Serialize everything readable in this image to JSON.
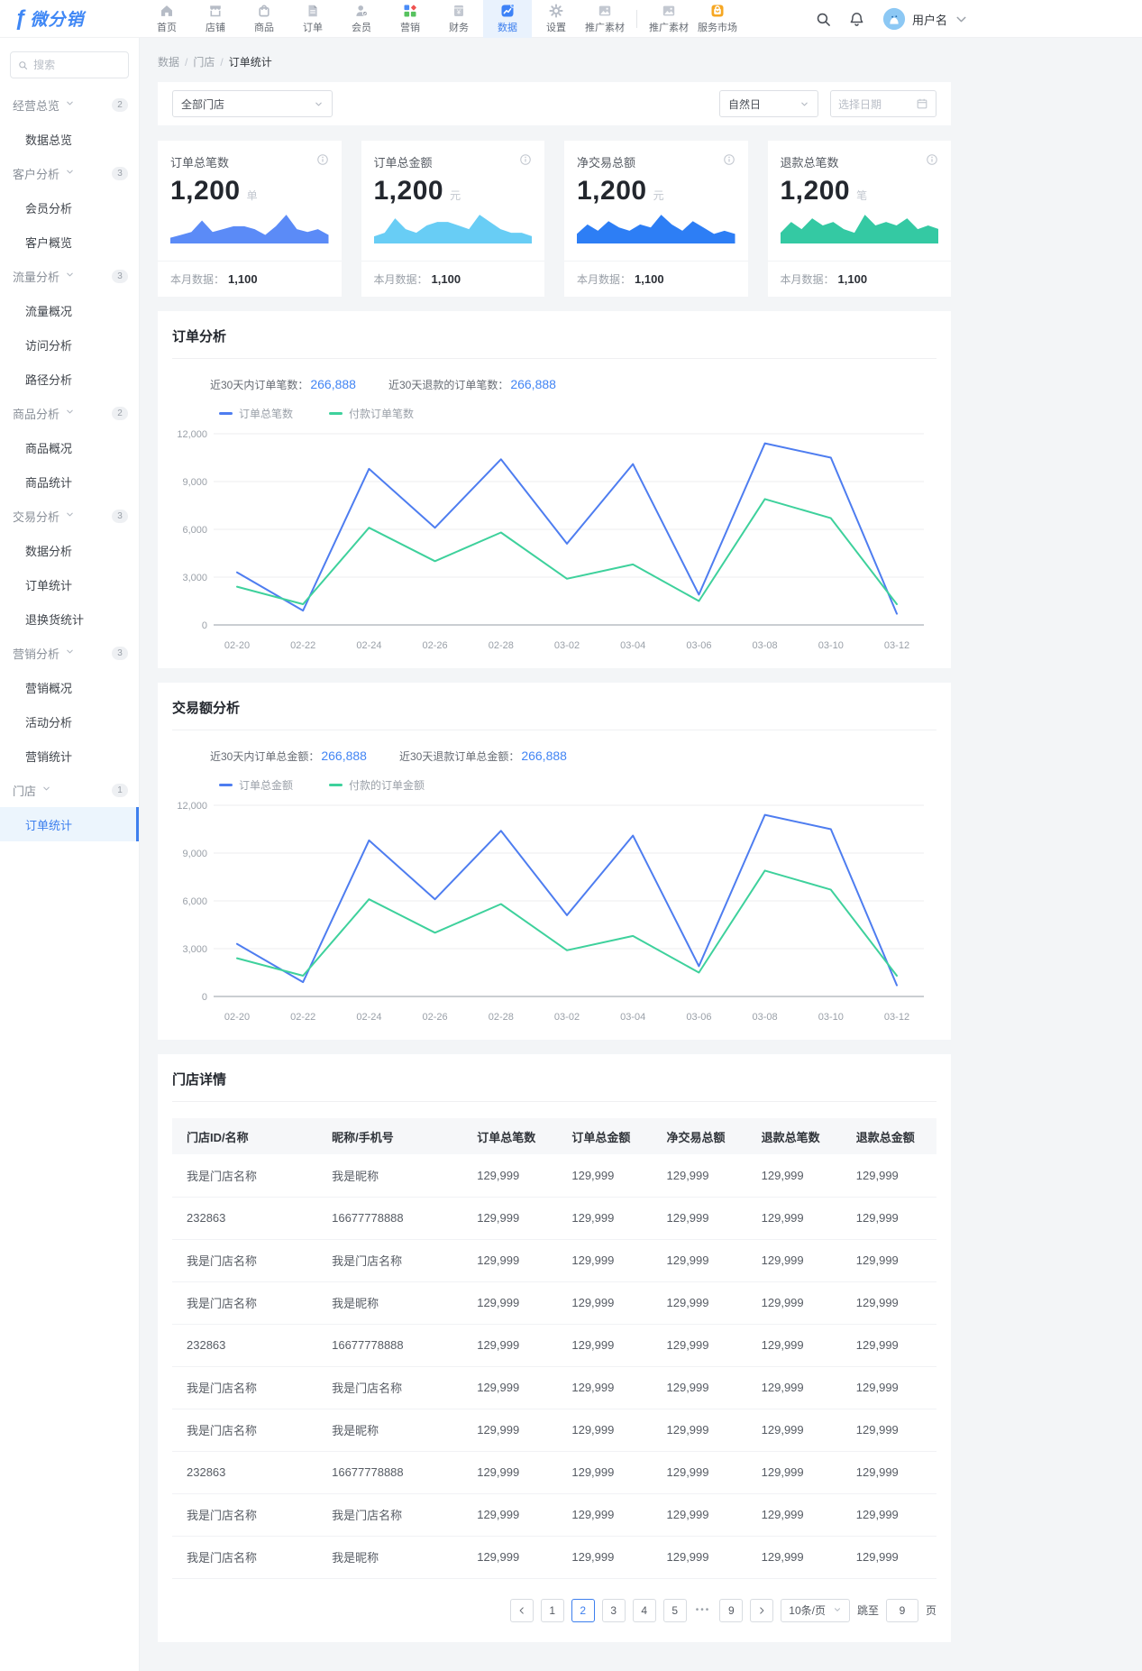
{
  "colors": {
    "primary": "#3d7fee",
    "line_blue": "#4e7df0",
    "line_green": "#3ed19c",
    "active_nav_bg": "#e9f2fd"
  },
  "nav": {
    "logo_text": "微分销",
    "items": [
      {
        "label": "首页",
        "icon": "home-icon"
      },
      {
        "label": "店铺",
        "icon": "store-icon"
      },
      {
        "label": "商品",
        "icon": "goods-icon"
      },
      {
        "label": "订单",
        "icon": "order-icon"
      },
      {
        "label": "会员",
        "icon": "member-icon"
      },
      {
        "label": "营销",
        "icon": "marketing-icon"
      },
      {
        "label": "财务",
        "icon": "finance-icon"
      },
      {
        "label": "数据",
        "icon": "data-icon",
        "active": true
      },
      {
        "label": "设置",
        "icon": "settings-icon"
      },
      {
        "label": "推广素材",
        "icon": "promo-icon"
      },
      {
        "label": "推广素材",
        "icon": "promo-icon",
        "divider_before": true
      },
      {
        "label": "服务市场",
        "icon": "market-icon"
      }
    ],
    "user_name": "用户名"
  },
  "sidebar": {
    "search_placeholder": "搜索",
    "groups": [
      {
        "label": "经营总览",
        "badge": "2",
        "items": [
          {
            "label": "数据总览"
          }
        ]
      },
      {
        "label": "客户分析",
        "badge": "3",
        "items": [
          {
            "label": "会员分析"
          },
          {
            "label": "客户概览"
          }
        ]
      },
      {
        "label": "流量分析",
        "badge": "3",
        "items": [
          {
            "label": "流量概况"
          },
          {
            "label": "访问分析"
          },
          {
            "label": "路径分析"
          }
        ]
      },
      {
        "label": "商品分析",
        "badge": "2",
        "items": [
          {
            "label": "商品概况"
          },
          {
            "label": "商品统计"
          }
        ]
      },
      {
        "label": "交易分析",
        "badge": "3",
        "items": [
          {
            "label": "数据分析"
          },
          {
            "label": "订单统计"
          },
          {
            "label": "退换货统计"
          }
        ]
      },
      {
        "label": "营销分析",
        "badge": "3",
        "items": [
          {
            "label": "营销概况"
          },
          {
            "label": "活动分析"
          },
          {
            "label": "营销统计"
          }
        ]
      },
      {
        "label": "门店",
        "badge": "1",
        "items": [
          {
            "label": "订单统计",
            "active": true
          }
        ]
      }
    ]
  },
  "breadcrumb": [
    "数据",
    "门店",
    "订单统计"
  ],
  "filters": {
    "store_select": "全部门店",
    "period_select": "自然日",
    "date_placeholder": "选择日期"
  },
  "cards": [
    {
      "title": "订单总笔数",
      "value": "1,200",
      "unit": "单",
      "month_label": "本月数据：",
      "month_value": "1,100",
      "color": "#5b8bf7",
      "spark": [
        2,
        3,
        4,
        8,
        4,
        5,
        6,
        6,
        5,
        3,
        6,
        10,
        5,
        4,
        5,
        3
      ]
    },
    {
      "title": "订单总金额",
      "value": "1,200",
      "unit": "元",
      "month_label": "本月数据：",
      "month_value": "1,100",
      "color": "#68cdf5",
      "spark": [
        2,
        3,
        7,
        4,
        3,
        5,
        6,
        6,
        5,
        4,
        8,
        6,
        4,
        3,
        3,
        2
      ]
    },
    {
      "title": "净交易总额",
      "value": "1,200",
      "unit": "元",
      "month_label": "本月数据：",
      "month_value": "1,100",
      "color": "#2d7ef5",
      "spark": [
        3,
        6,
        4,
        7,
        5,
        4,
        6,
        5,
        9,
        6,
        4,
        7,
        5,
        3,
        4,
        3
      ]
    },
    {
      "title": "退款总笔数",
      "value": "1,200",
      "unit": "笔",
      "month_label": "本月数据：",
      "month_value": "1,100",
      "color": "#34c9a3",
      "spark": [
        3,
        6,
        4,
        7,
        5,
        6,
        4,
        3,
        8,
        5,
        6,
        5,
        7,
        4,
        5,
        4
      ]
    }
  ],
  "chart_data": [
    {
      "type": "line",
      "section_title": "订单分析",
      "stats": [
        {
          "label": "近30天内订单笔数：",
          "value": "266,888"
        },
        {
          "label": "近30天退款的订单笔数：",
          "value": "266,888"
        }
      ],
      "x": [
        "02-20",
        "02-22",
        "02-24",
        "02-26",
        "02-28",
        "03-02",
        "03-04",
        "03-06",
        "03-08",
        "03-10",
        "03-12"
      ],
      "series": [
        {
          "name": "订单总笔数",
          "color": "#4e7df0",
          "values": [
            3300,
            900,
            9800,
            6100,
            10400,
            5100,
            10100,
            1900,
            11400,
            10500,
            700
          ]
        },
        {
          "name": "付款订单笔数",
          "color": "#3ed19c",
          "values": [
            2400,
            1300,
            6100,
            4000,
            5800,
            2900,
            3800,
            1500,
            7900,
            6700,
            1300
          ]
        }
      ],
      "ylim": [
        0,
        12000
      ],
      "yticks": [
        "0",
        "3,000",
        "6,000",
        "9,000",
        "12,000"
      ],
      "grid": true,
      "legend_position": "top-left"
    },
    {
      "type": "line",
      "section_title": "交易额分析",
      "stats": [
        {
          "label": "近30天内订单总金额：",
          "value": "266,888"
        },
        {
          "label": "近30天退款订单总金额：",
          "value": "266,888"
        }
      ],
      "x": [
        "02-20",
        "02-22",
        "02-24",
        "02-26",
        "02-28",
        "03-02",
        "03-04",
        "03-06",
        "03-08",
        "03-10",
        "03-12"
      ],
      "series": [
        {
          "name": "订单总金额",
          "color": "#4e7df0",
          "values": [
            3300,
            900,
            9800,
            6100,
            10400,
            5100,
            10100,
            1900,
            11400,
            10500,
            700
          ]
        },
        {
          "name": "付款的订单金额",
          "color": "#3ed19c",
          "values": [
            2400,
            1300,
            6100,
            4000,
            5800,
            2900,
            3800,
            1500,
            7900,
            6700,
            1300
          ]
        }
      ],
      "ylim": [
        0,
        12000
      ],
      "yticks": [
        "0",
        "3,000",
        "6,000",
        "9,000",
        "12,000"
      ],
      "grid": true,
      "legend_position": "top-left"
    }
  ],
  "table": {
    "section_title": "门店详情",
    "columns": [
      "门店ID/名称",
      "昵称/手机号",
      "订单总笔数",
      "订单总金额",
      "净交易总额",
      "退款总笔数",
      "退款总金额"
    ],
    "rows": [
      [
        "我是门店名称",
        "我是昵称",
        "129,999",
        "129,999",
        "129,999",
        "129,999",
        "129,999"
      ],
      [
        "232863",
        "16677778888",
        "129,999",
        "129,999",
        "129,999",
        "129,999",
        "129,999"
      ],
      [
        "我是门店名称",
        "我是门店名称",
        "129,999",
        "129,999",
        "129,999",
        "129,999",
        "129,999"
      ],
      [
        "我是门店名称",
        "我是昵称",
        "129,999",
        "129,999",
        "129,999",
        "129,999",
        "129,999"
      ],
      [
        "232863",
        "16677778888",
        "129,999",
        "129,999",
        "129,999",
        "129,999",
        "129,999"
      ],
      [
        "我是门店名称",
        "我是门店名称",
        "129,999",
        "129,999",
        "129,999",
        "129,999",
        "129,999"
      ],
      [
        "我是门店名称",
        "我是昵称",
        "129,999",
        "129,999",
        "129,999",
        "129,999",
        "129,999"
      ],
      [
        "232863",
        "16677778888",
        "129,999",
        "129,999",
        "129,999",
        "129,999",
        "129,999"
      ],
      [
        "我是门店名称",
        "我是门店名称",
        "129,999",
        "129,999",
        "129,999",
        "129,999",
        "129,999"
      ],
      [
        "我是门店名称",
        "我是昵称",
        "129,999",
        "129,999",
        "129,999",
        "129,999",
        "129,999"
      ]
    ]
  },
  "pagination": {
    "pages": [
      "1",
      "2",
      "3",
      "4",
      "5",
      "•••",
      "9"
    ],
    "current": "2",
    "page_size": "10条/页",
    "jump_label": "跳至",
    "jump_value": "9",
    "jump_suffix": "页"
  },
  "icons": {
    "search": "search-icon",
    "notifications": "bell-icon",
    "info": "info-icon",
    "calendar": "calendar-icon",
    "chevron": "chevron-down-icon"
  }
}
